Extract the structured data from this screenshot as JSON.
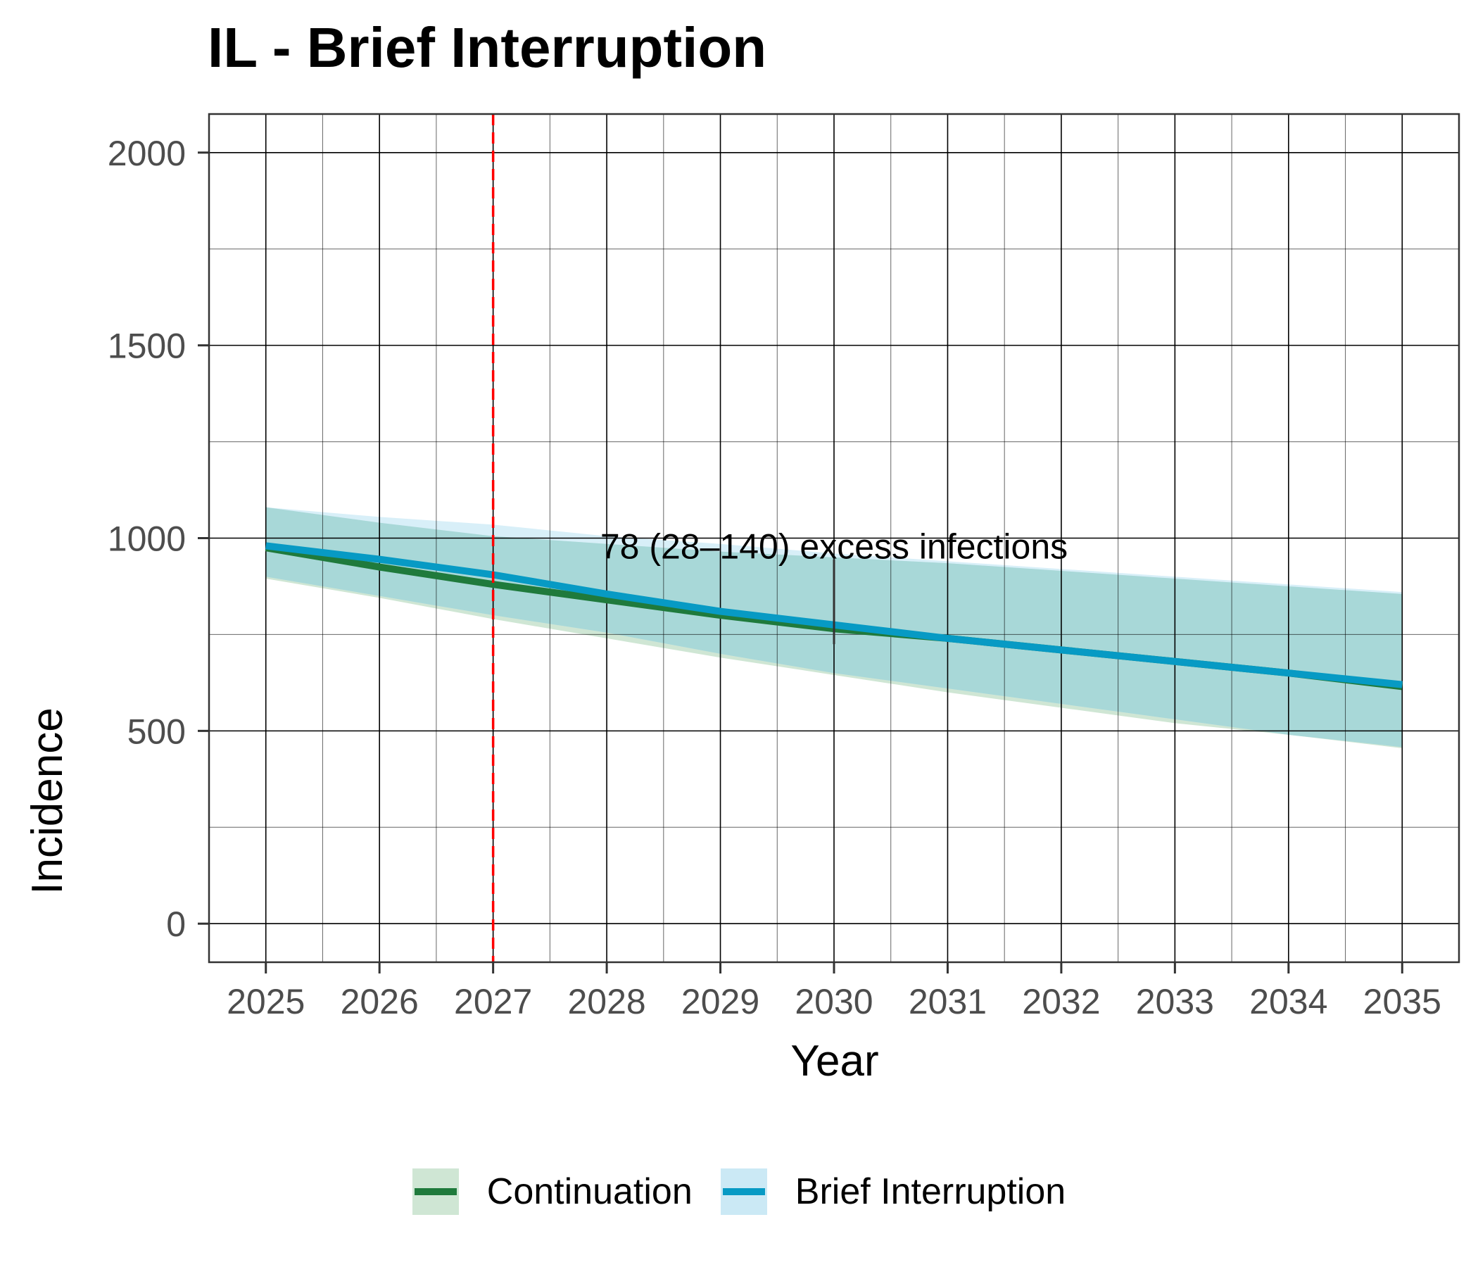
{
  "chart_data": {
    "type": "line",
    "title": "IL - Brief Interruption",
    "xlabel": "Year",
    "ylabel": "Incidence",
    "xlim": [
      2024.5,
      2035.5
    ],
    "ylim": [
      -100,
      2100
    ],
    "x_ticks": [
      2025,
      2026,
      2027,
      2028,
      2029,
      2030,
      2031,
      2032,
      2033,
      2034,
      2035
    ],
    "y_ticks": [
      0,
      500,
      1000,
      1500,
      2000
    ],
    "grid": true,
    "legend_position": "bottom",
    "x": [
      2025,
      2026,
      2027,
      2028,
      2029,
      2030,
      2031,
      2032,
      2033,
      2034,
      2035
    ],
    "series": [
      {
        "name": "Continuation",
        "color": "#1f7a3c",
        "ribbon_color": "#cfe6d4",
        "values": [
          975,
          925,
          880,
          840,
          800,
          765,
          740,
          710,
          680,
          650,
          615
        ],
        "lower": [
          895,
          845,
          790,
          740,
          690,
          645,
          600,
          560,
          520,
          490,
          455
        ],
        "upper": [
          1080,
          1040,
          1005,
          985,
          965,
          950,
          935,
          915,
          895,
          875,
          855
        ]
      },
      {
        "name": "Brief Interruption",
        "color": "#079ac4",
        "ribbon_color": "#cbe9f5",
        "values": [
          980,
          945,
          905,
          855,
          810,
          775,
          740,
          710,
          680,
          650,
          620
        ],
        "lower": [
          900,
          850,
          800,
          755,
          700,
          650,
          610,
          570,
          530,
          490,
          458
        ],
        "upper": [
          1080,
          1055,
          1035,
          1005,
          985,
          960,
          940,
          920,
          900,
          880,
          860
        ]
      }
    ],
    "overlap_color": "#a8d8d8",
    "vline": {
      "x": 2027,
      "color": "#ff0000",
      "style": "dashed"
    },
    "annotation": {
      "text": "78 (28–140) excess infections",
      "x": 2030,
      "y": 980,
      "bracket_y": [
        725,
        945
      ]
    }
  }
}
